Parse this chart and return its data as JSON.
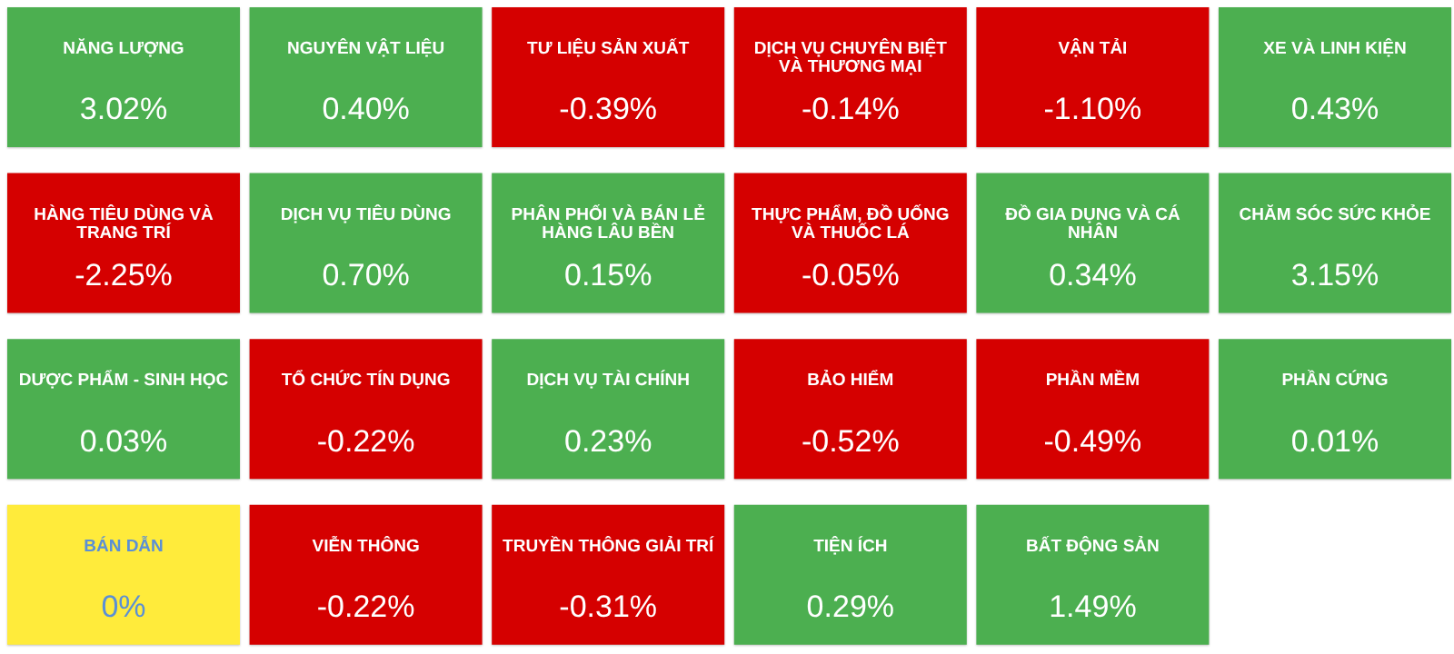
{
  "chart_data": {
    "type": "other",
    "categories": [
      "NĂNG LƯỢNG",
      "NGUYÊN VẬT LIỆU",
      "TƯ LIỆU SẢN XUẤT",
      "DỊCH VỤ CHUYÊN BIỆT VÀ THƯƠNG MẠI",
      "VẬN TẢI",
      "XE VÀ LINH KIỆN",
      "HÀNG TIÊU DÙNG VÀ TRANG TRÍ",
      "DỊCH VỤ TIÊU DÙNG",
      "PHÂN PHỐI VÀ BÁN LẺ HÀNG LÂU BỀN",
      "THỰC PHẨM, ĐỒ UỐNG VÀ THUỐC LÁ",
      "ĐỒ GIA DỤNG VÀ CÁ NHÂN",
      "CHĂM SÓC SỨC KHỎE",
      "DƯỢC PHẨM - SINH HỌC",
      "TỔ CHỨC TÍN DỤNG",
      "DỊCH VỤ TÀI CHÍNH",
      "BẢO HIỂM",
      "PHẦN MỀM",
      "PHẦN CỨNG",
      "BÁN DẪN",
      "VIỄN THÔNG",
      "TRUYỀN THÔNG GIẢI TRÍ",
      "TIỆN ÍCH",
      "BẤT ĐỘNG SẢN"
    ],
    "values": [
      3.02,
      0.4,
      -0.39,
      -0.14,
      -1.1,
      0.43,
      -2.25,
      0.7,
      0.15,
      -0.05,
      0.34,
      3.15,
      0.03,
      -0.22,
      0.23,
      -0.52,
      -0.49,
      0.01,
      0,
      -0.22,
      -0.31,
      0.29,
      1.49
    ],
    "value_labels": [
      "3.02%",
      "0.40%",
      "-0.39%",
      "-0.14%",
      "-1.10%",
      "0.43%",
      "-2.25%",
      "0.70%",
      "0.15%",
      "-0.05%",
      "0.34%",
      "3.15%",
      "0.03%",
      "-0.22%",
      "0.23%",
      "-0.52%",
      "-0.49%",
      "0.01%",
      "0%",
      "-0.22%",
      "-0.31%",
      "0.29%",
      "1.49%"
    ],
    "colors": [
      "#4caf50",
      "#4caf50",
      "#d50000",
      "#d50000",
      "#d50000",
      "#4caf50",
      "#d50000",
      "#4caf50",
      "#4caf50",
      "#d50000",
      "#4caf50",
      "#4caf50",
      "#4caf50",
      "#d50000",
      "#4caf50",
      "#d50000",
      "#d50000",
      "#4caf50",
      "#ffeb3b",
      "#d50000",
      "#d50000",
      "#4caf50",
      "#4caf50"
    ]
  }
}
